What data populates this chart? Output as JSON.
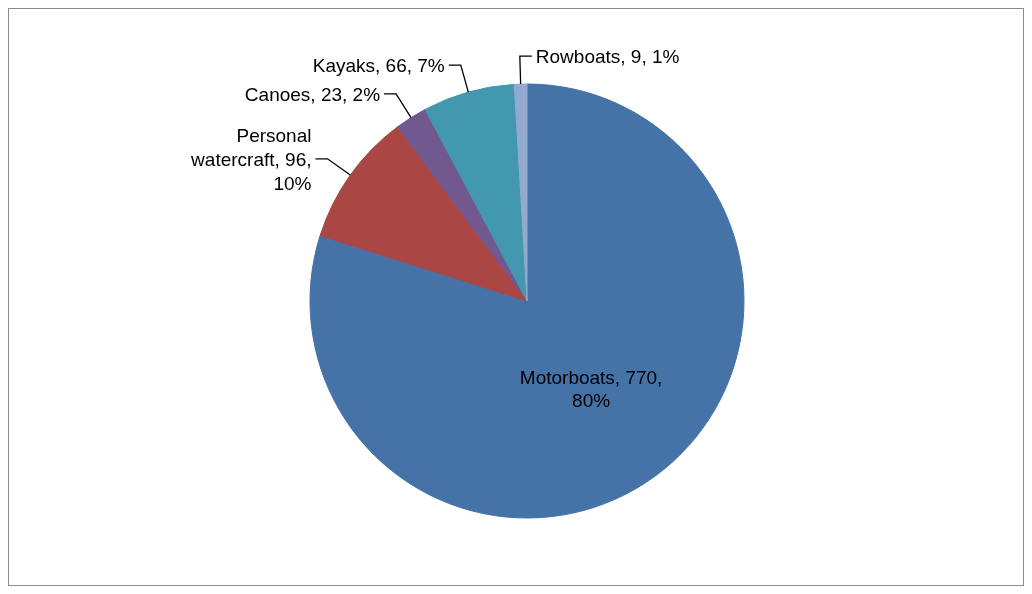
{
  "chart_data": {
    "type": "pie",
    "categories": [
      "Motorboats",
      "Personal watercraft",
      null,
      "Canoes",
      "Kayaks",
      "Rowboats"
    ],
    "values": [
      770,
      96,
      null,
      23,
      66,
      9
    ],
    "colors": [
      "#4573a7",
      "#aa4643",
      "#89a54e",
      "#71588f",
      "#4198af",
      "#93a9cf"
    ],
    "value_labels": [
      "770, 80%",
      "96, 10%",
      null,
      "23, 2%",
      "66, 7%",
      "9, 1%"
    ],
    "legend": false
  }
}
